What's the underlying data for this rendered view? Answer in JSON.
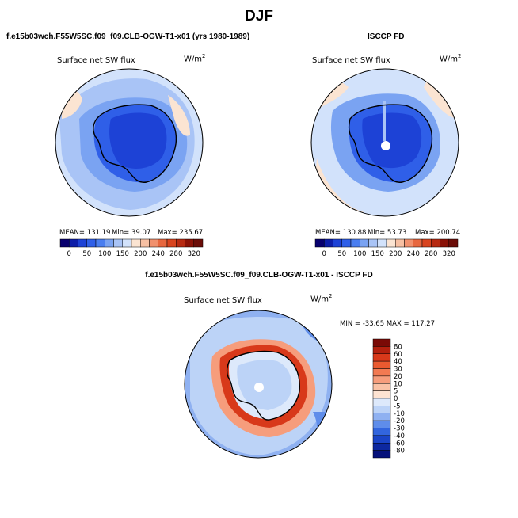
{
  "page_title": "DJF",
  "chart_data": [
    {
      "type": "heatmap",
      "projection": "south-polar-stereographic",
      "case_title": "f.e15b03wch.F55W5SC.f09_f09.CLB-OGW-T1-x01 (yrs 1980-1989)",
      "variable": "Surface net SW flux",
      "units_base": "W/m",
      "units_exp": "2",
      "stats": {
        "mean": "131.19",
        "min": "39.07",
        "max": "235.67"
      },
      "stats_labels": {
        "mean": "MEAN=",
        "min": "Min=",
        "max": "Max="
      },
      "colorbar": {
        "orientation": "horizontal",
        "levels": [
          0,
          25,
          50,
          75,
          100,
          125,
          150,
          175,
          200,
          220,
          240,
          260,
          280,
          300,
          320
        ],
        "tick_labels": [
          "0",
          "50",
          "100",
          "150",
          "200",
          "240",
          "280",
          "320"
        ],
        "colors": [
          "#08006e",
          "#0d1ea8",
          "#1d42d6",
          "#2f5fe8",
          "#4a7ef0",
          "#7aa3f2",
          "#a9c4f6",
          "#d2e2fb",
          "#fbe4d2",
          "#f7c0a3",
          "#f1916e",
          "#e7673f",
          "#d8441f",
          "#b72a12",
          "#8a1207",
          "#6b0d08"
        ]
      }
    },
    {
      "type": "heatmap",
      "projection": "south-polar-stereographic",
      "case_title": "ISCCP FD",
      "variable": "Surface net SW flux",
      "units_base": "W/m",
      "units_exp": "2",
      "stats": {
        "mean": "130.88",
        "min": "53.73",
        "max": "200.74"
      },
      "stats_labels": {
        "mean": "MEAN=",
        "min": "Min=",
        "max": "Max="
      },
      "colorbar": {
        "orientation": "horizontal",
        "levels": [
          0,
          25,
          50,
          75,
          100,
          125,
          150,
          175,
          200,
          220,
          240,
          260,
          280,
          300,
          320
        ],
        "tick_labels": [
          "0",
          "50",
          "100",
          "150",
          "200",
          "240",
          "280",
          "320"
        ],
        "colors": [
          "#08006e",
          "#0d1ea8",
          "#1d42d6",
          "#2f5fe8",
          "#4a7ef0",
          "#7aa3f2",
          "#a9c4f6",
          "#d2e2fb",
          "#fbe4d2",
          "#f7c0a3",
          "#f1916e",
          "#e7673f",
          "#d8441f",
          "#b72a12",
          "#8a1207",
          "#6b0d08"
        ]
      }
    },
    {
      "type": "heatmap",
      "projection": "south-polar-stereographic",
      "case_title": "f.e15b03wch.F55W5SC.f09_f09.CLB-OGW-T1-x01 - ISCCP FD",
      "variable": "Surface net SW flux",
      "units_base": "W/m",
      "units_exp": "2",
      "stats_line": "MIN = -33.65 MAX = 117.27",
      "stats": {
        "min": -33.65,
        "max": 117.27
      },
      "colorbar": {
        "orientation": "vertical",
        "tick_labels": [
          "80",
          "60",
          "40",
          "30",
          "20",
          "10",
          "5",
          "0",
          "-5",
          "-10",
          "-20",
          "-30",
          "-40",
          "-60",
          "-80"
        ],
        "colors": [
          "#7a0a06",
          "#b3200e",
          "#d8391a",
          "#ea5a30",
          "#f27a52",
          "#f69d7c",
          "#f9c2a6",
          "#fde3d2",
          "#dde9fb",
          "#bcd3f7",
          "#8fb1f1",
          "#5f8dea",
          "#3265de",
          "#1a44c7",
          "#0d28a0",
          "#06117a"
        ]
      }
    }
  ]
}
